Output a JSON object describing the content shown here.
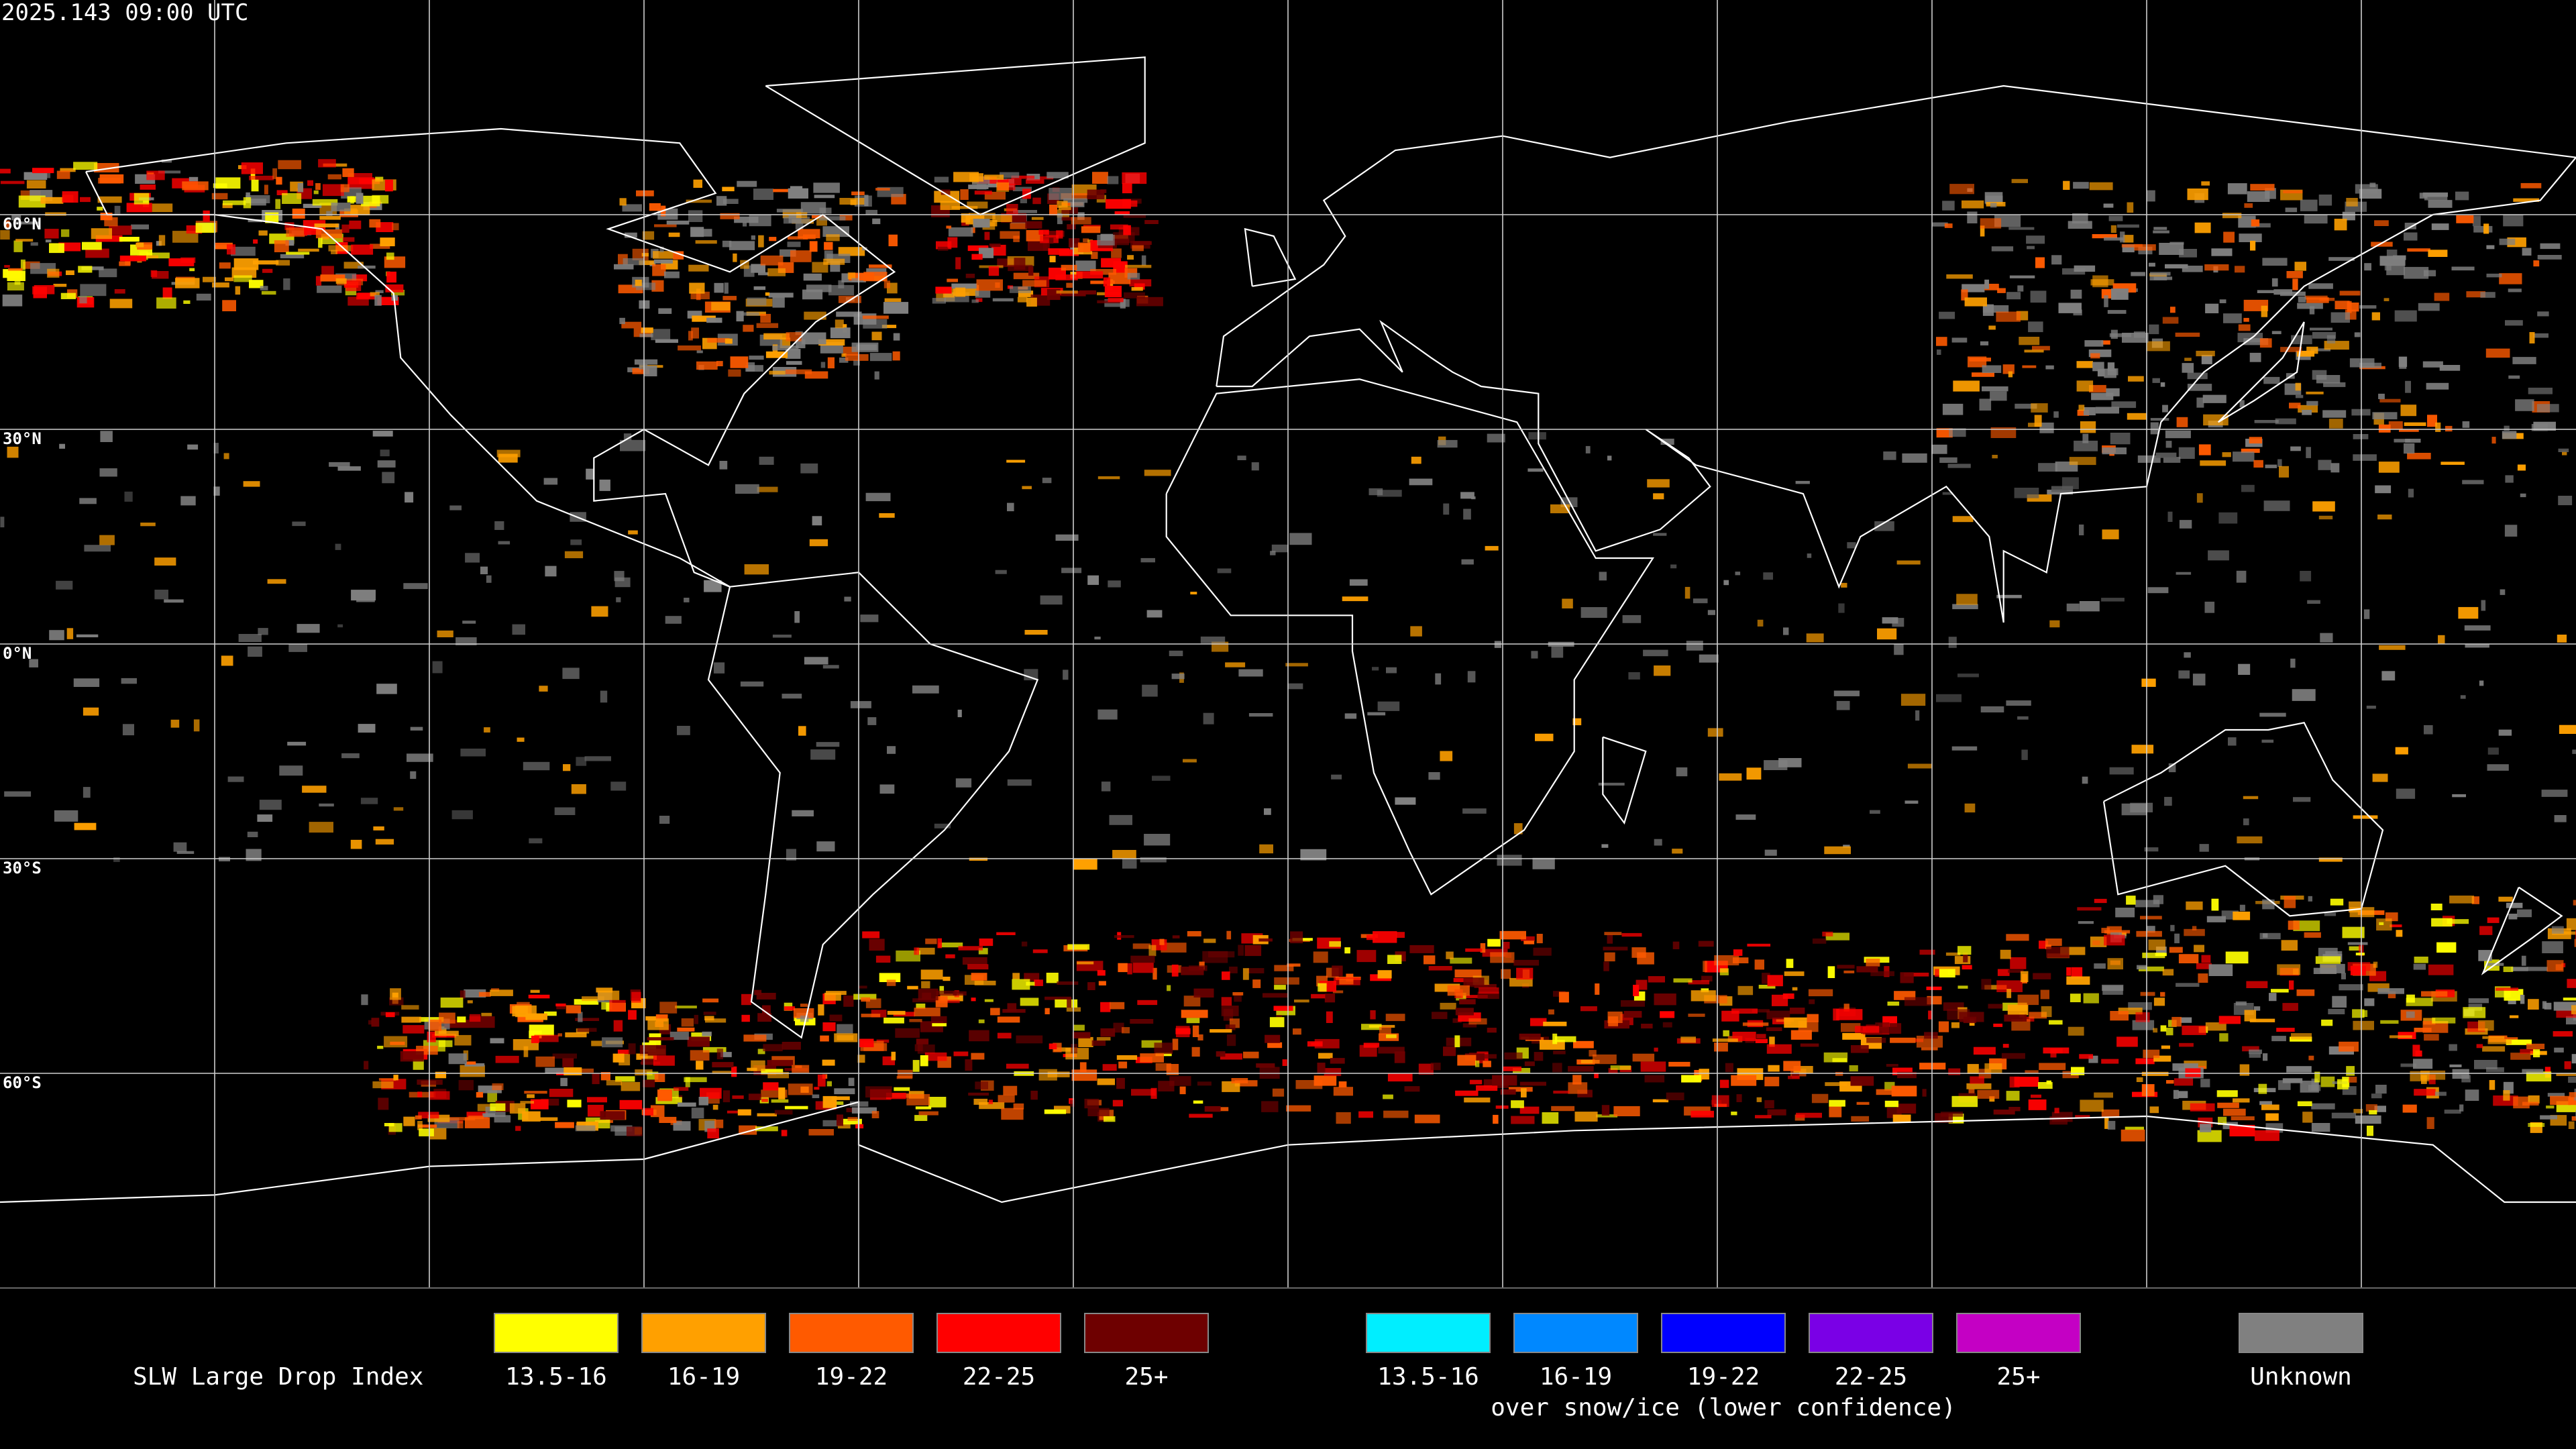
{
  "header": {
    "timestamp": "2025.143 09:00 UTC"
  },
  "map": {
    "latitude_labels": [
      "60°N",
      "30°N",
      "0°N",
      "30°S",
      "60°S"
    ]
  },
  "legend": {
    "title": "SLW Large Drop Index",
    "groups": [
      {
        "items": [
          {
            "label": "13.5-16",
            "color": "#ffff00"
          },
          {
            "label": "16-19",
            "color": "#ffa000"
          },
          {
            "label": "19-22",
            "color": "#ff5a00"
          },
          {
            "label": "22-25",
            "color": "#ff0000"
          },
          {
            "label": "25+",
            "color": "#6e0000"
          }
        ]
      },
      {
        "items": [
          {
            "label": "13.5-16",
            "color": "#00eeff"
          },
          {
            "label": "16-19",
            "color": "#0088ff"
          },
          {
            "label": "19-22",
            "color": "#0000ff"
          },
          {
            "label": "22-25",
            "color": "#7a00e6"
          },
          {
            "label": "25+",
            "color": "#c400c4"
          }
        ],
        "caption": "over snow/ice (lower confidence)"
      },
      {
        "items": [
          {
            "label": "Unknown",
            "color": "#808080"
          }
        ]
      }
    ]
  }
}
